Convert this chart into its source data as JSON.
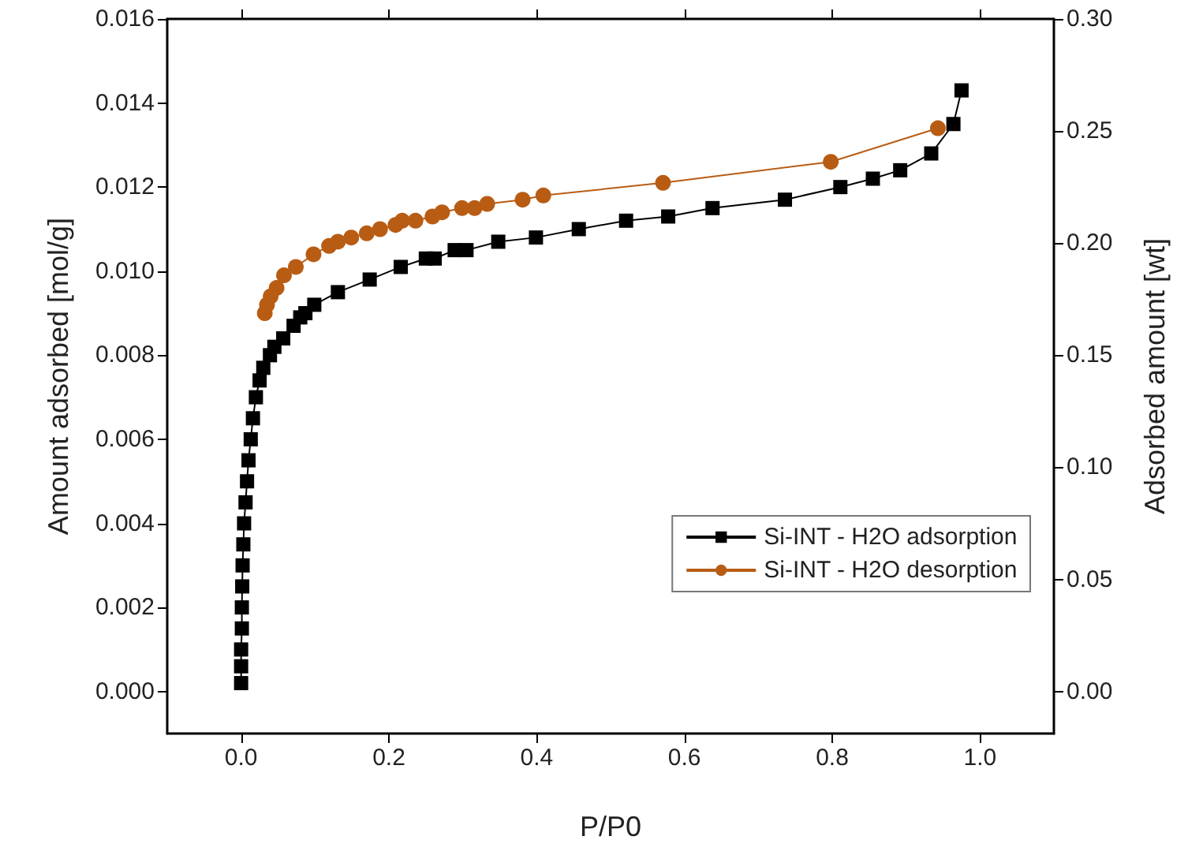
{
  "chart_data": {
    "type": "line",
    "xlabel": "P/P0",
    "ylabel": "Amount adsorbed [mol/g]",
    "y2label": "Adsorbed amount [wt]",
    "xlim": [
      -0.1,
      1.1
    ],
    "xticks": [
      {
        "value": 0,
        "label": "0.0"
      },
      {
        "value": 0.2,
        "label": "0.2"
      },
      {
        "value": 0.4,
        "label": "0.4"
      },
      {
        "value": 0.6,
        "label": "0.6"
      },
      {
        "value": 0.8,
        "label": "0.8"
      },
      {
        "value": 1,
        "label": "1.0"
      }
    ],
    "ylim": [
      -0.001,
      0.016
    ],
    "yticks": [
      {
        "value": 0,
        "label": "0.000"
      },
      {
        "value": 0.002,
        "label": "0.002"
      },
      {
        "value": 0.004,
        "label": "0.004"
      },
      {
        "value": 0.006,
        "label": "0.006"
      },
      {
        "value": 0.008,
        "label": "0.008"
      },
      {
        "value": 0.01,
        "label": "0.010"
      },
      {
        "value": 0.012,
        "label": "0.012"
      },
      {
        "value": 0.014,
        "label": "0.014"
      },
      {
        "value": 0.016,
        "label": "0.016"
      }
    ],
    "y2lim": [
      -0.01875,
      0.3
    ],
    "y2ticks": [
      {
        "value": 0,
        "label": "0.00"
      },
      {
        "value": 0.05,
        "label": "0.05"
      },
      {
        "value": 0.1,
        "label": "0.10"
      },
      {
        "value": 0.15,
        "label": "0.15"
      },
      {
        "value": 0.2,
        "label": "0.20"
      },
      {
        "value": 0.25,
        "label": "0.25"
      },
      {
        "value": 0.3,
        "label": "0.30"
      }
    ],
    "grid": false,
    "legend": "right",
    "series": [
      {
        "name": "Si-INT - H2O adsorption",
        "color": "#000000",
        "marker": "square",
        "x": [
          0,
          0,
          0,
          0.001,
          0.001,
          0.0015,
          0.002,
          0.003,
          0.004,
          0.006,
          0.008,
          0.01,
          0.013,
          0.016,
          0.02,
          0.025,
          0.03,
          0.039,
          0.045,
          0.057,
          0.071,
          0.08,
          0.087,
          0.099,
          0.131,
          0.174,
          0.216,
          0.25,
          0.262,
          0.289,
          0.305,
          0.348,
          0.399,
          0.457,
          0.521,
          0.578,
          0.638,
          0.736,
          0.811,
          0.855,
          0.892,
          0.934,
          0.964,
          0.975
        ],
        "values": [
          0.0002,
          0.0006,
          0.001,
          0.0015,
          0.002,
          0.0025,
          0.003,
          0.0035,
          0.004,
          0.0045,
          0.005,
          0.0055,
          0.006,
          0.0065,
          0.007,
          0.0074,
          0.0077,
          0.008,
          0.0082,
          0.0084,
          0.0087,
          0.0089,
          0.009,
          0.0092,
          0.0095,
          0.0098,
          0.0101,
          0.0103,
          0.0103,
          0.0105,
          0.0105,
          0.0107,
          0.0108,
          0.011,
          0.0112,
          0.0113,
          0.0115,
          0.0117,
          0.012,
          0.0122,
          0.0124,
          0.0128,
          0.0135,
          0.0143
        ]
      },
      {
        "name": "Si-INT - H2O desorption",
        "color": "#b85c14",
        "marker": "circle",
        "x": [
          0.032,
          0.035,
          0.04,
          0.048,
          0.058,
          0.074,
          0.098,
          0.119,
          0.131,
          0.149,
          0.17,
          0.188,
          0.209,
          0.218,
          0.236,
          0.259,
          0.272,
          0.299,
          0.316,
          0.333,
          0.381,
          0.409,
          0.571,
          0.798,
          0.943
        ],
        "values": [
          0.009,
          0.0092,
          0.0094,
          0.0096,
          0.0099,
          0.0101,
          0.0104,
          0.0106,
          0.0107,
          0.0108,
          0.0109,
          0.011,
          0.0111,
          0.0112,
          0.0112,
          0.0113,
          0.0114,
          0.0115,
          0.0115,
          0.0116,
          0.0117,
          0.0118,
          0.0121,
          0.0126,
          0.0134
        ]
      }
    ]
  }
}
